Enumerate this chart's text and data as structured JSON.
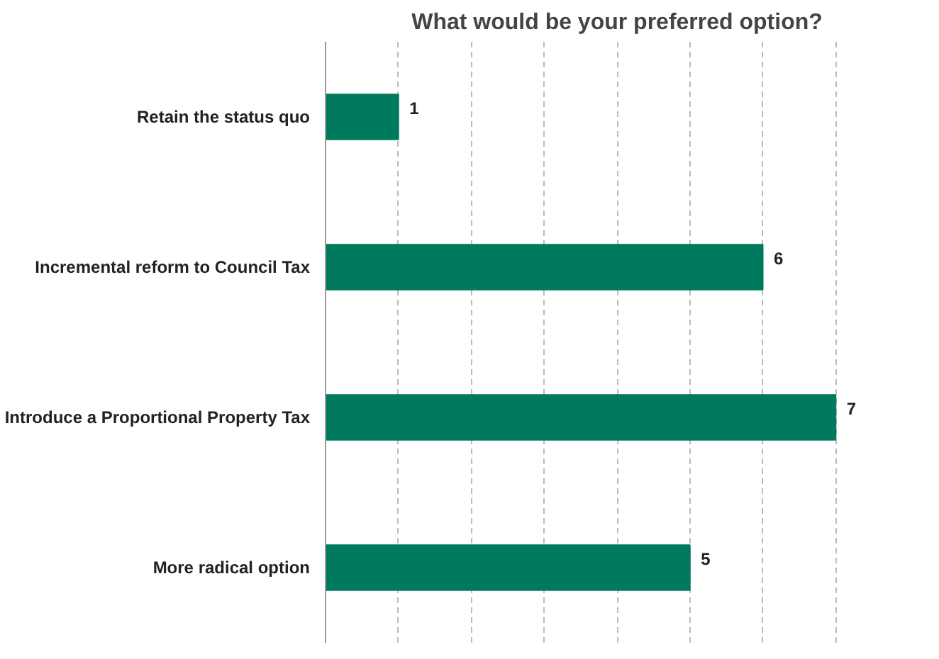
{
  "chart_data": {
    "type": "bar",
    "orientation": "horizontal",
    "title": "What would be your preferred option?",
    "categories": [
      "Retain the status quo",
      "Incremental reform to Council Tax",
      "Introduce a Proportional Property Tax",
      "More radical option"
    ],
    "values": [
      1,
      6,
      7,
      5
    ],
    "color": "#007a5e",
    "data_labels": true,
    "grid": "x",
    "tick_labels": "y"
  }
}
